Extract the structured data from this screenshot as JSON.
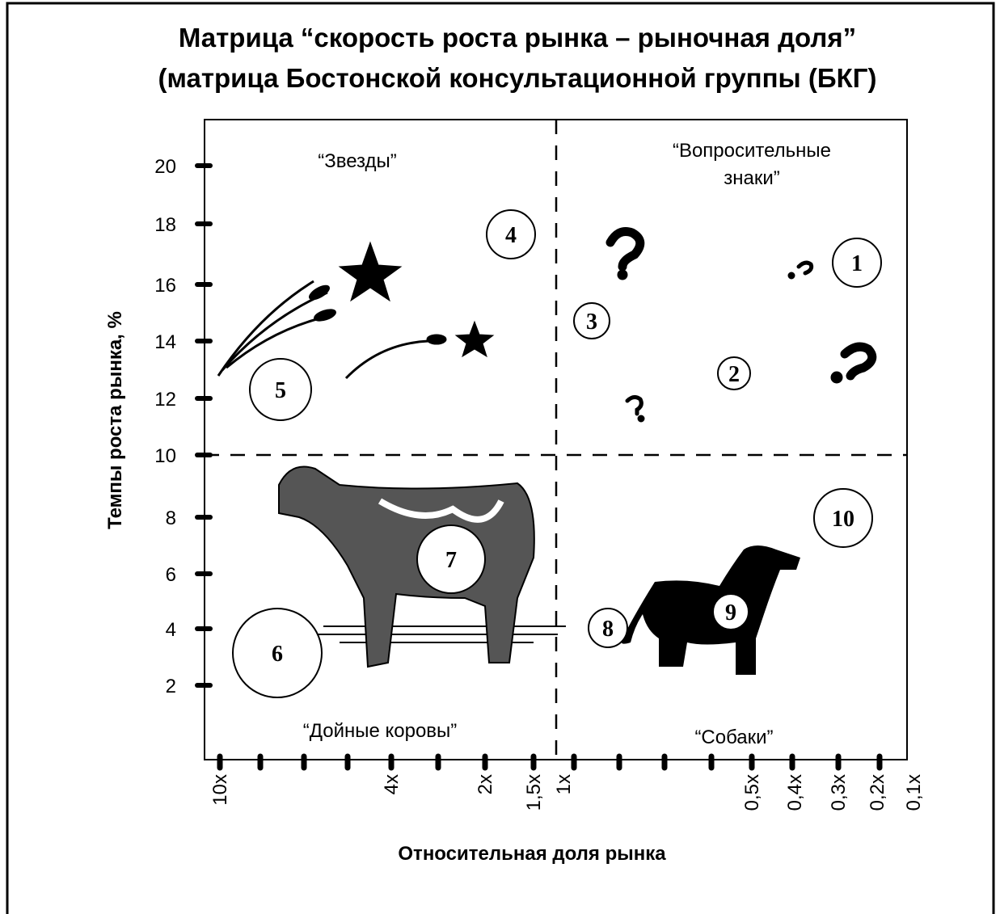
{
  "title": [
    "Матрица “скорость роста рынка – рыночная доля”",
    "(матрица Бостонской консультационной группы  (БКГ)"
  ],
  "y_axis": {
    "label": "Темпы роста рынка, %",
    "ticks": [
      "20",
      "18",
      "16",
      "14",
      "12",
      "10",
      "8",
      "6",
      "4",
      "2"
    ]
  },
  "x_axis": {
    "label": "Относительная доля рынка",
    "ticks": [
      "10x",
      "4x",
      "2x",
      "1,5x",
      "1x",
      "0,5x",
      "0,4x",
      "0,3x",
      "0,2x",
      "0,1x"
    ]
  },
  "quadrants": [
    {
      "lines": [
        "“Звезды”"
      ]
    },
    {
      "lines": [
        "“Вопросительные",
        "знаки”"
      ]
    },
    {
      "lines": [
        "“Дойные коровы”"
      ]
    },
    {
      "lines": [
        "“Собаки”"
      ]
    }
  ],
  "bubbles": [
    "1",
    "2",
    "3",
    "4",
    "5",
    "6",
    "7",
    "8",
    "9",
    "10"
  ]
}
